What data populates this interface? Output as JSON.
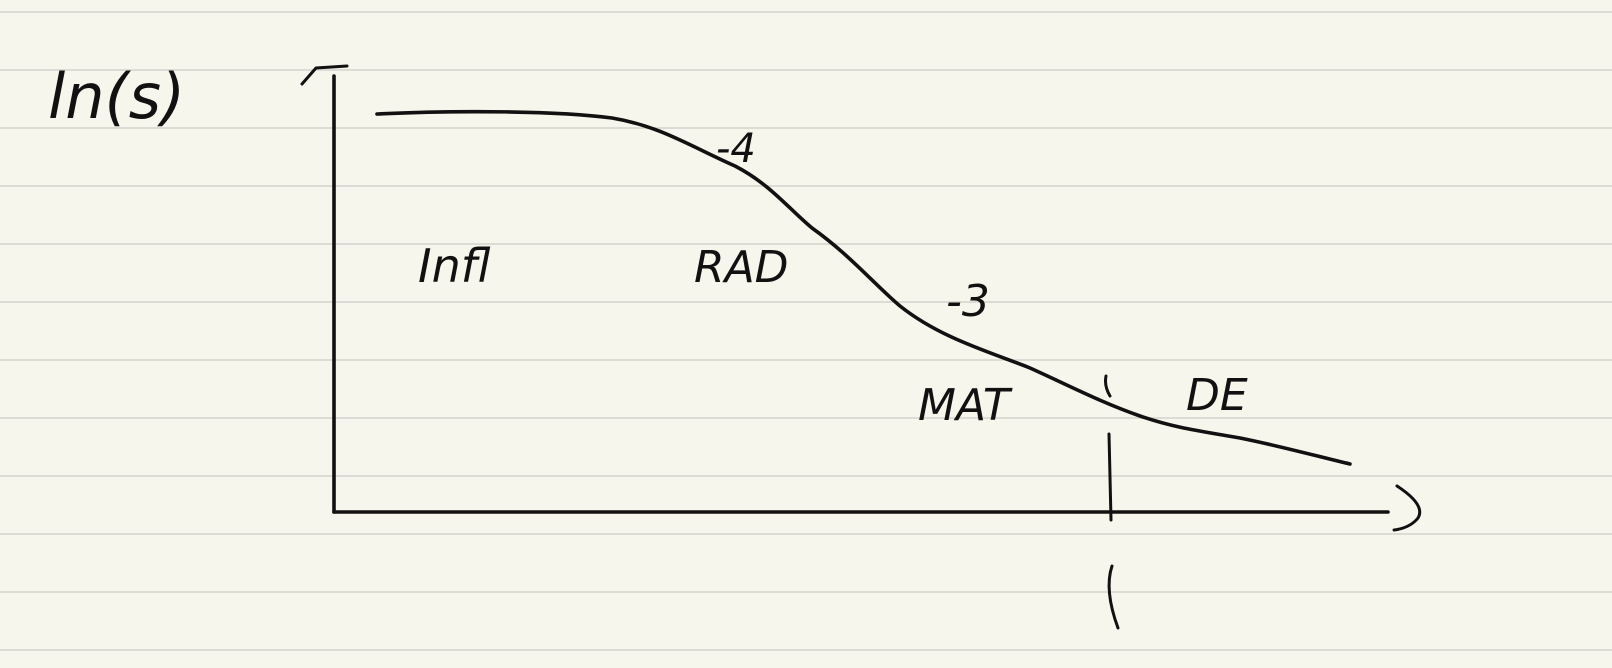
{
  "page": {
    "background": "#f7f6ec",
    "rule_color": "#dcdcd4",
    "ink_color": "#111111"
  },
  "diagram": {
    "y_axis_label": "ln(s)",
    "curve_description": "decreasing curve: flat plateau, then steep slope, then shallower slope, then nearly linear tail",
    "region_labels": [
      "Infl",
      "RAD",
      "MAT",
      "DE"
    ],
    "slope_labels": [
      "-4",
      "-3"
    ],
    "has_vertical_marker": true
  }
}
